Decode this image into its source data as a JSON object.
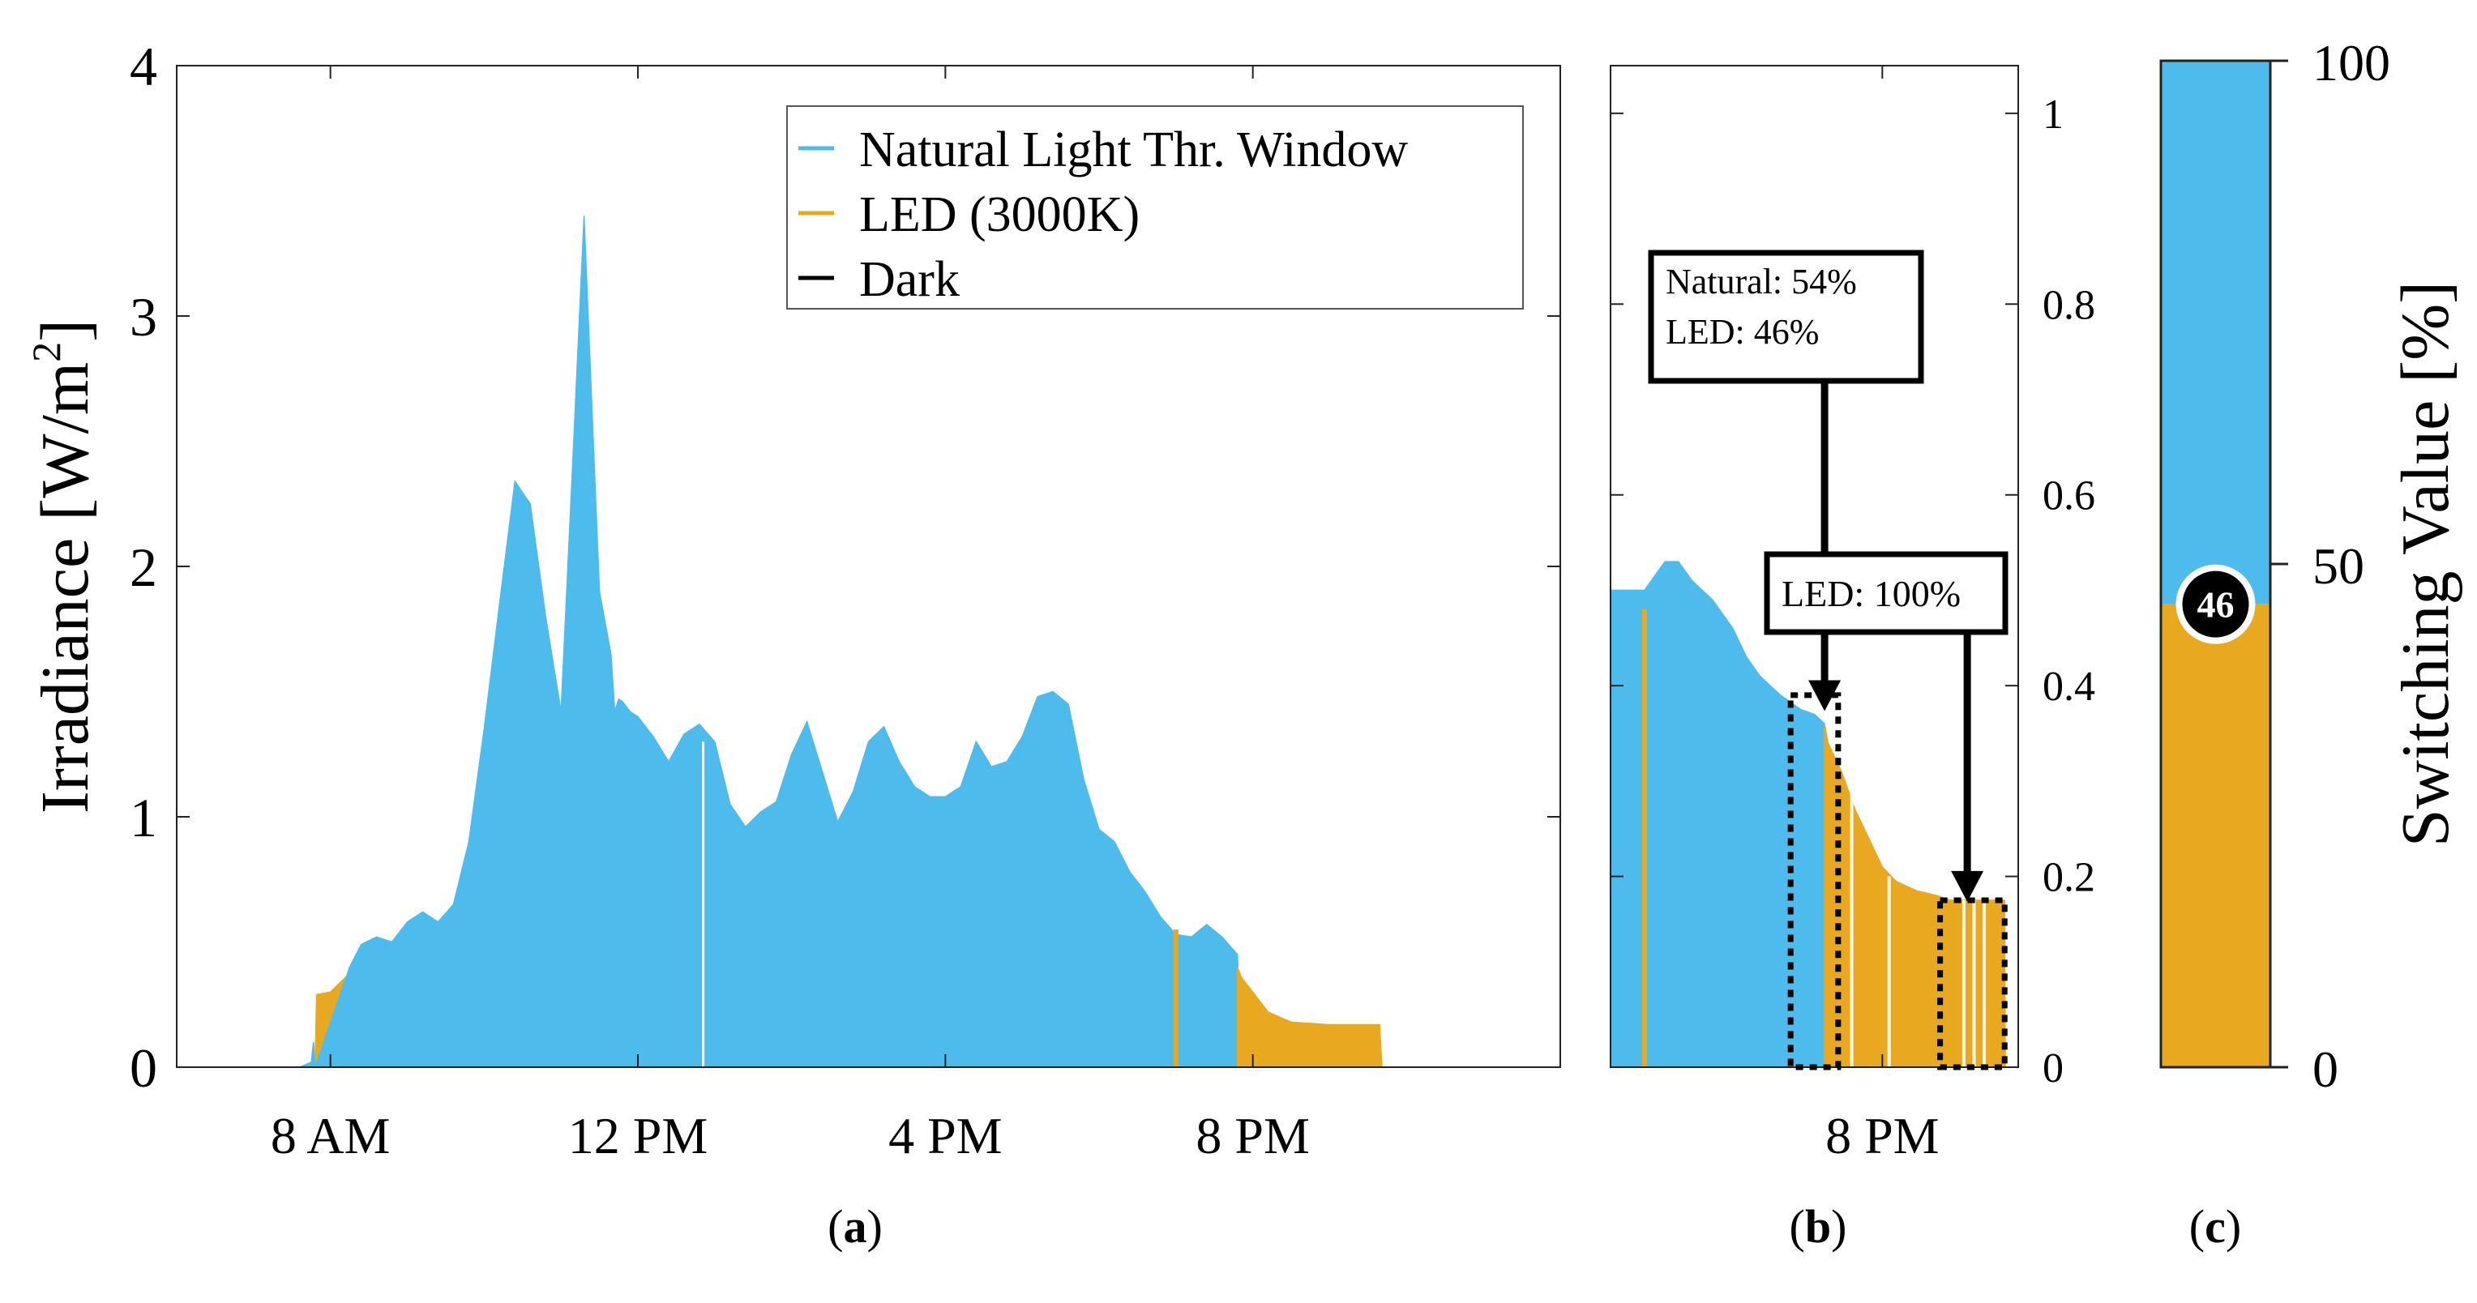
{
  "colors": {
    "natural": "#4DBBEC",
    "led": "#E8A920",
    "dark": "#000000",
    "axis": "#222222"
  },
  "chart_data": [
    {
      "id": "a",
      "type": "area",
      "panel_label": "(a)",
      "panel_letter": "a",
      "ylabel_main": "Irradiance [W/m",
      "ylabel_sup": "2",
      "ylabel_close": "]",
      "ylim": [
        0,
        4
      ],
      "xlim": [
        6.0,
        24.0
      ],
      "yticks": [
        {
          "v": 0,
          "t": "0"
        },
        {
          "v": 1,
          "t": "1"
        },
        {
          "v": 2,
          "t": "2"
        },
        {
          "v": 3,
          "t": "3"
        },
        {
          "v": 4,
          "t": "4"
        }
      ],
      "xticks": [
        {
          "v": 8,
          "t": "8 AM"
        },
        {
          "v": 12,
          "t": "12 PM"
        },
        {
          "v": 16,
          "t": "4 PM"
        },
        {
          "v": 20,
          "t": "8 PM"
        }
      ],
      "legend": [
        {
          "key": "natural",
          "label": "Natural Light Thr. Window"
        },
        {
          "key": "led",
          "label": "LED (3000K)"
        },
        {
          "key": "dark",
          "label": "Dark"
        }
      ],
      "series": [
        {
          "name": "LED (3000K)",
          "key": "led",
          "x": [
            7.8,
            7.82,
            8.0,
            8.2,
            8.25
          ],
          "y": [
            0.0,
            0.29,
            0.3,
            0.36,
            0.38
          ]
        },
        {
          "name": "Natural Light Thr. Window",
          "key": "natural",
          "x": [
            7.6,
            7.75,
            7.78,
            7.8,
            8.25,
            8.4,
            8.6,
            8.8,
            9.0,
            9.2,
            9.4,
            9.6,
            9.8,
            10.0,
            10.2,
            10.4,
            10.6,
            10.8,
            11.0,
            11.15,
            11.3,
            11.5,
            11.65,
            11.7,
            11.75,
            11.8,
            11.9,
            12.0,
            12.2,
            12.4,
            12.6,
            12.8,
            13.0,
            13.2,
            13.4,
            13.6,
            13.8,
            14.0,
            14.2,
            14.4,
            14.6,
            14.8,
            15.0,
            15.2,
            15.4,
            15.6,
            15.8,
            16.0,
            16.2,
            16.4,
            16.6,
            16.8,
            17.0,
            17.2,
            17.4,
            17.6,
            17.8,
            18.0,
            18.2,
            18.4,
            18.6,
            18.8,
            19.0,
            19.2,
            19.4,
            19.6,
            19.8,
            19.85
          ],
          "y": [
            0.0,
            0.02,
            0.1,
            0.0,
            0.4,
            0.49,
            0.52,
            0.5,
            0.58,
            0.62,
            0.58,
            0.65,
            0.9,
            1.35,
            1.85,
            2.34,
            2.25,
            1.8,
            1.42,
            2.4,
            3.4,
            1.9,
            1.65,
            1.42,
            1.47,
            1.46,
            1.42,
            1.4,
            1.32,
            1.22,
            1.33,
            1.37,
            1.3,
            1.05,
            0.96,
            1.02,
            1.06,
            1.25,
            1.38,
            1.18,
            0.98,
            1.1,
            1.3,
            1.36,
            1.22,
            1.12,
            1.08,
            1.08,
            1.12,
            1.3,
            1.2,
            1.22,
            1.32,
            1.48,
            1.5,
            1.45,
            1.15,
            0.95,
            0.9,
            0.78,
            0.7,
            0.6,
            0.53,
            0.52,
            0.57,
            0.52,
            0.45,
            0.0
          ]
        },
        {
          "name": "LED (3000K)",
          "key": "led",
          "x": [
            19.8,
            19.85,
            20.0,
            20.2,
            20.5,
            21.0,
            21.5,
            21.65,
            21.68
          ],
          "y": [
            0.4,
            0.36,
            0.3,
            0.22,
            0.18,
            0.17,
            0.17,
            0.17,
            0.0
          ]
        }
      ],
      "led_spikes": [
        {
          "x": 19.0,
          "y": 0.55
        }
      ],
      "white_gaps": [
        {
          "x": 12.85,
          "y": 1.3
        }
      ]
    },
    {
      "id": "b",
      "type": "area",
      "panel_label": "(b)",
      "panel_letter": "b",
      "ylim": [
        0,
        1.05
      ],
      "xlim": [
        16.0,
        22.0
      ],
      "yticks": [
        {
          "v": 0,
          "t": "0"
        },
        {
          "v": 0.2,
          "t": "0.2"
        },
        {
          "v": 0.4,
          "t": "0.4"
        },
        {
          "v": 0.6,
          "t": "0.6"
        },
        {
          "v": 0.8,
          "t": "0.8"
        },
        {
          "v": 1.0,
          "t": "1"
        }
      ],
      "xticks": [
        {
          "v": 20,
          "t": "8 PM"
        }
      ],
      "series": [
        {
          "name": "Natural Light Thr. Window",
          "key": "natural",
          "x": [
            16.0,
            16.5,
            16.7,
            16.8,
            17.0,
            17.2,
            17.5,
            17.8,
            18.0,
            18.2,
            18.5,
            18.8,
            19.0,
            19.15,
            19.16
          ],
          "y": [
            0.5,
            0.5,
            0.52,
            0.53,
            0.53,
            0.51,
            0.49,
            0.46,
            0.43,
            0.41,
            0.39,
            0.375,
            0.37,
            0.36,
            0.0
          ]
        },
        {
          "name": "LED (3000K)",
          "key": "led",
          "x": [
            19.15,
            19.2,
            19.4,
            19.6,
            19.8,
            20.0,
            20.2,
            20.5,
            20.8,
            21.0,
            21.2,
            21.5,
            21.8,
            21.81
          ],
          "y": [
            0.36,
            0.34,
            0.31,
            0.27,
            0.24,
            0.21,
            0.195,
            0.185,
            0.18,
            0.175,
            0.175,
            0.175,
            0.175,
            0.0
          ]
        }
      ],
      "led_spikes": [
        {
          "x": 16.5,
          "y": 0.48
        }
      ],
      "white_gaps": [
        {
          "x": 19.55,
          "y": 0.3
        },
        {
          "x": 20.1,
          "y": 0.2
        },
        {
          "x": 21.2,
          "y": 0.175
        },
        {
          "x": 21.35,
          "y": 0.175
        },
        {
          "x": 21.5,
          "y": 0.175
        }
      ],
      "annotations": [
        {
          "lines": [
            "Natural: 54%",
            "LED: 46%"
          ],
          "target": {
            "x": 19.15,
            "y": 0.37
          },
          "box": {
            "x1": 18.65,
            "x2": 19.35,
            "y1": 0.0,
            "y2": 0.39
          }
        },
        {
          "lines": [
            "LED: 100%"
          ],
          "target": {
            "x": 21.25,
            "y": 0.17
          },
          "box": {
            "x1": 20.85,
            "x2": 21.8,
            "y1": 0.0,
            "y2": 0.175
          }
        }
      ]
    },
    {
      "id": "c",
      "type": "bar",
      "panel_label": "(c)",
      "panel_letter": "c",
      "ylabel": "Switching Value [%]",
      "ylim": [
        0,
        100
      ],
      "yticks": [
        {
          "v": 0,
          "t": "0"
        },
        {
          "v": 50,
          "t": "50"
        },
        {
          "v": 100,
          "t": "100"
        }
      ],
      "series": [
        {
          "name": "LED",
          "key": "led",
          "value": 46
        },
        {
          "name": "Natural",
          "key": "natural",
          "value": 54
        }
      ],
      "marker_label": "46",
      "marker_value": 46
    }
  ]
}
